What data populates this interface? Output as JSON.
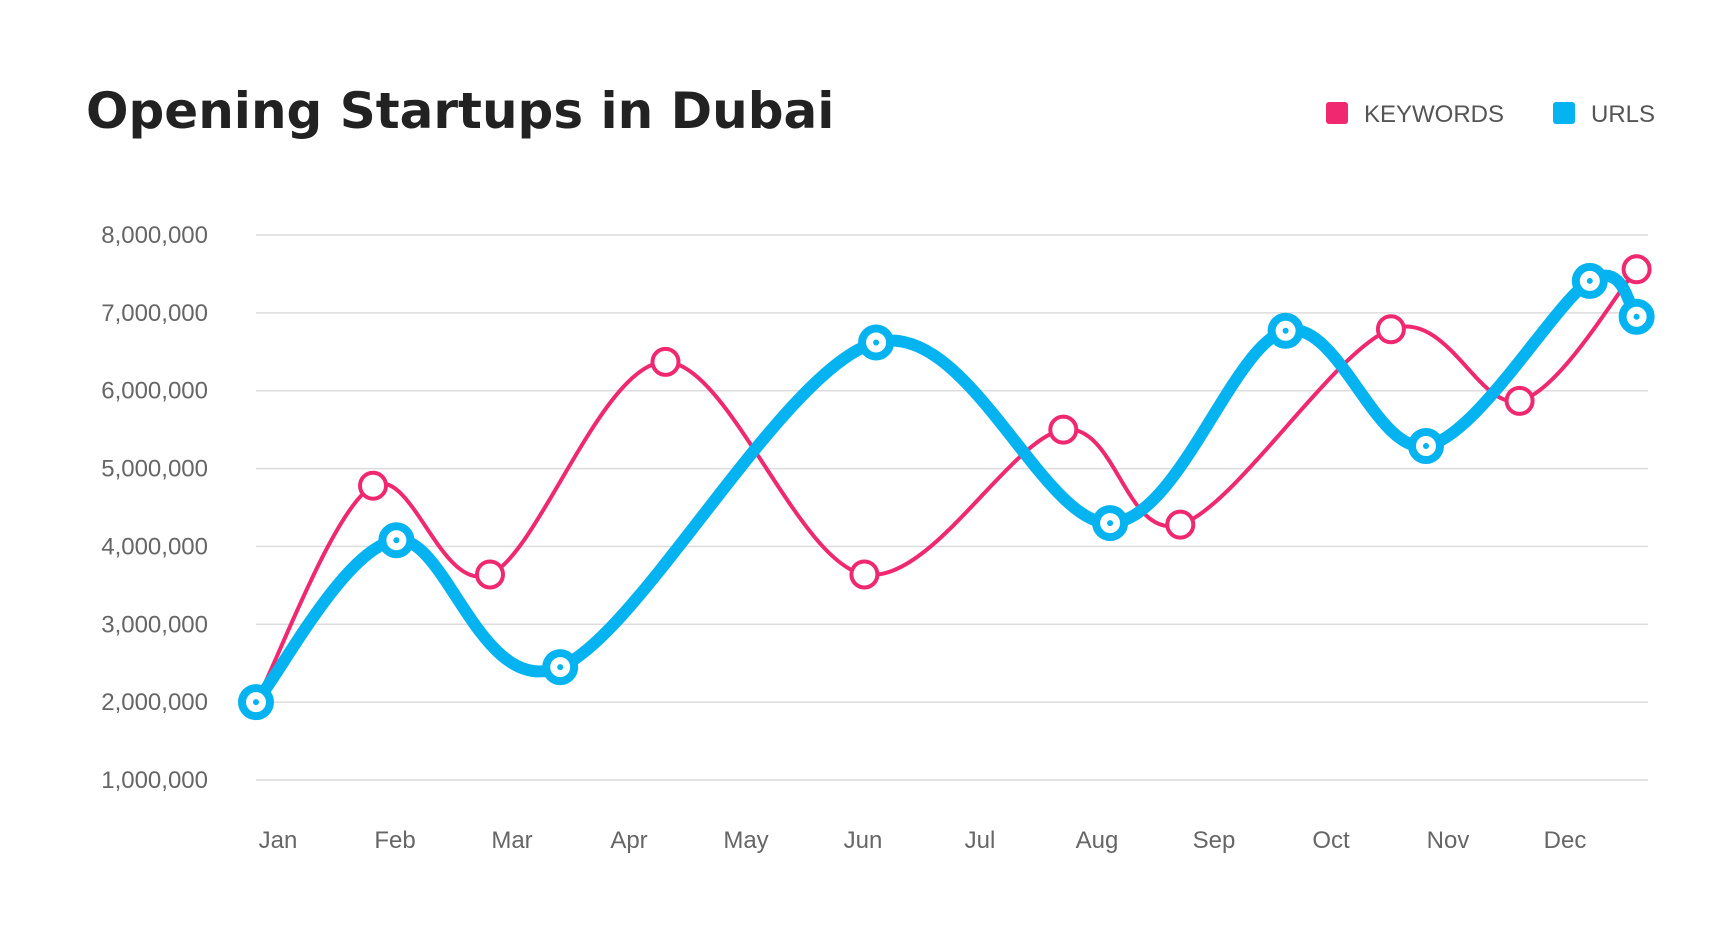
{
  "chart_data": {
    "type": "line",
    "title": "Opening Startups in Dubai",
    "categories": [
      "Jan",
      "Feb",
      "Mar",
      "Apr",
      "May",
      "Jun",
      "Jul",
      "Aug",
      "Sep",
      "Oct",
      "Nov",
      "Dec"
    ],
    "y_ticks": [
      "1,000,000",
      "2,000,000",
      "3,000,000",
      "4,000,000",
      "5,000,000",
      "6,000,000",
      "7,000,000",
      "8,000,000"
    ],
    "ylim": [
      1000000,
      8000000
    ],
    "grid": true,
    "legend_position": "top-right",
    "series": [
      {
        "name": "KEYWORDS",
        "color": "#f0286f",
        "points": [
          {
            "x": 0.0,
            "y": 2000000
          },
          {
            "x": 1.0,
            "y": 4780000
          },
          {
            "x": 2.0,
            "y": 3640000
          },
          {
            "x": 3.5,
            "y": 6370000
          },
          {
            "x": 5.2,
            "y": 3640000
          },
          {
            "x": 6.9,
            "y": 5500000
          },
          {
            "x": 7.9,
            "y": 4280000
          },
          {
            "x": 9.7,
            "y": 6790000
          },
          {
            "x": 10.8,
            "y": 5870000
          },
          {
            "x": 11.8,
            "y": 7560000
          }
        ]
      },
      {
        "name": "URLS",
        "color": "#05b3f1",
        "points": [
          {
            "x": 0.0,
            "y": 2000000
          },
          {
            "x": 1.2,
            "y": 4080000
          },
          {
            "x": 2.6,
            "y": 2450000
          },
          {
            "x": 5.3,
            "y": 6620000
          },
          {
            "x": 7.3,
            "y": 4300000
          },
          {
            "x": 8.8,
            "y": 6770000
          },
          {
            "x": 10.0,
            "y": 5290000
          },
          {
            "x": 11.4,
            "y": 7410000
          },
          {
            "x": 11.8,
            "y": 6950000
          }
        ]
      }
    ]
  }
}
